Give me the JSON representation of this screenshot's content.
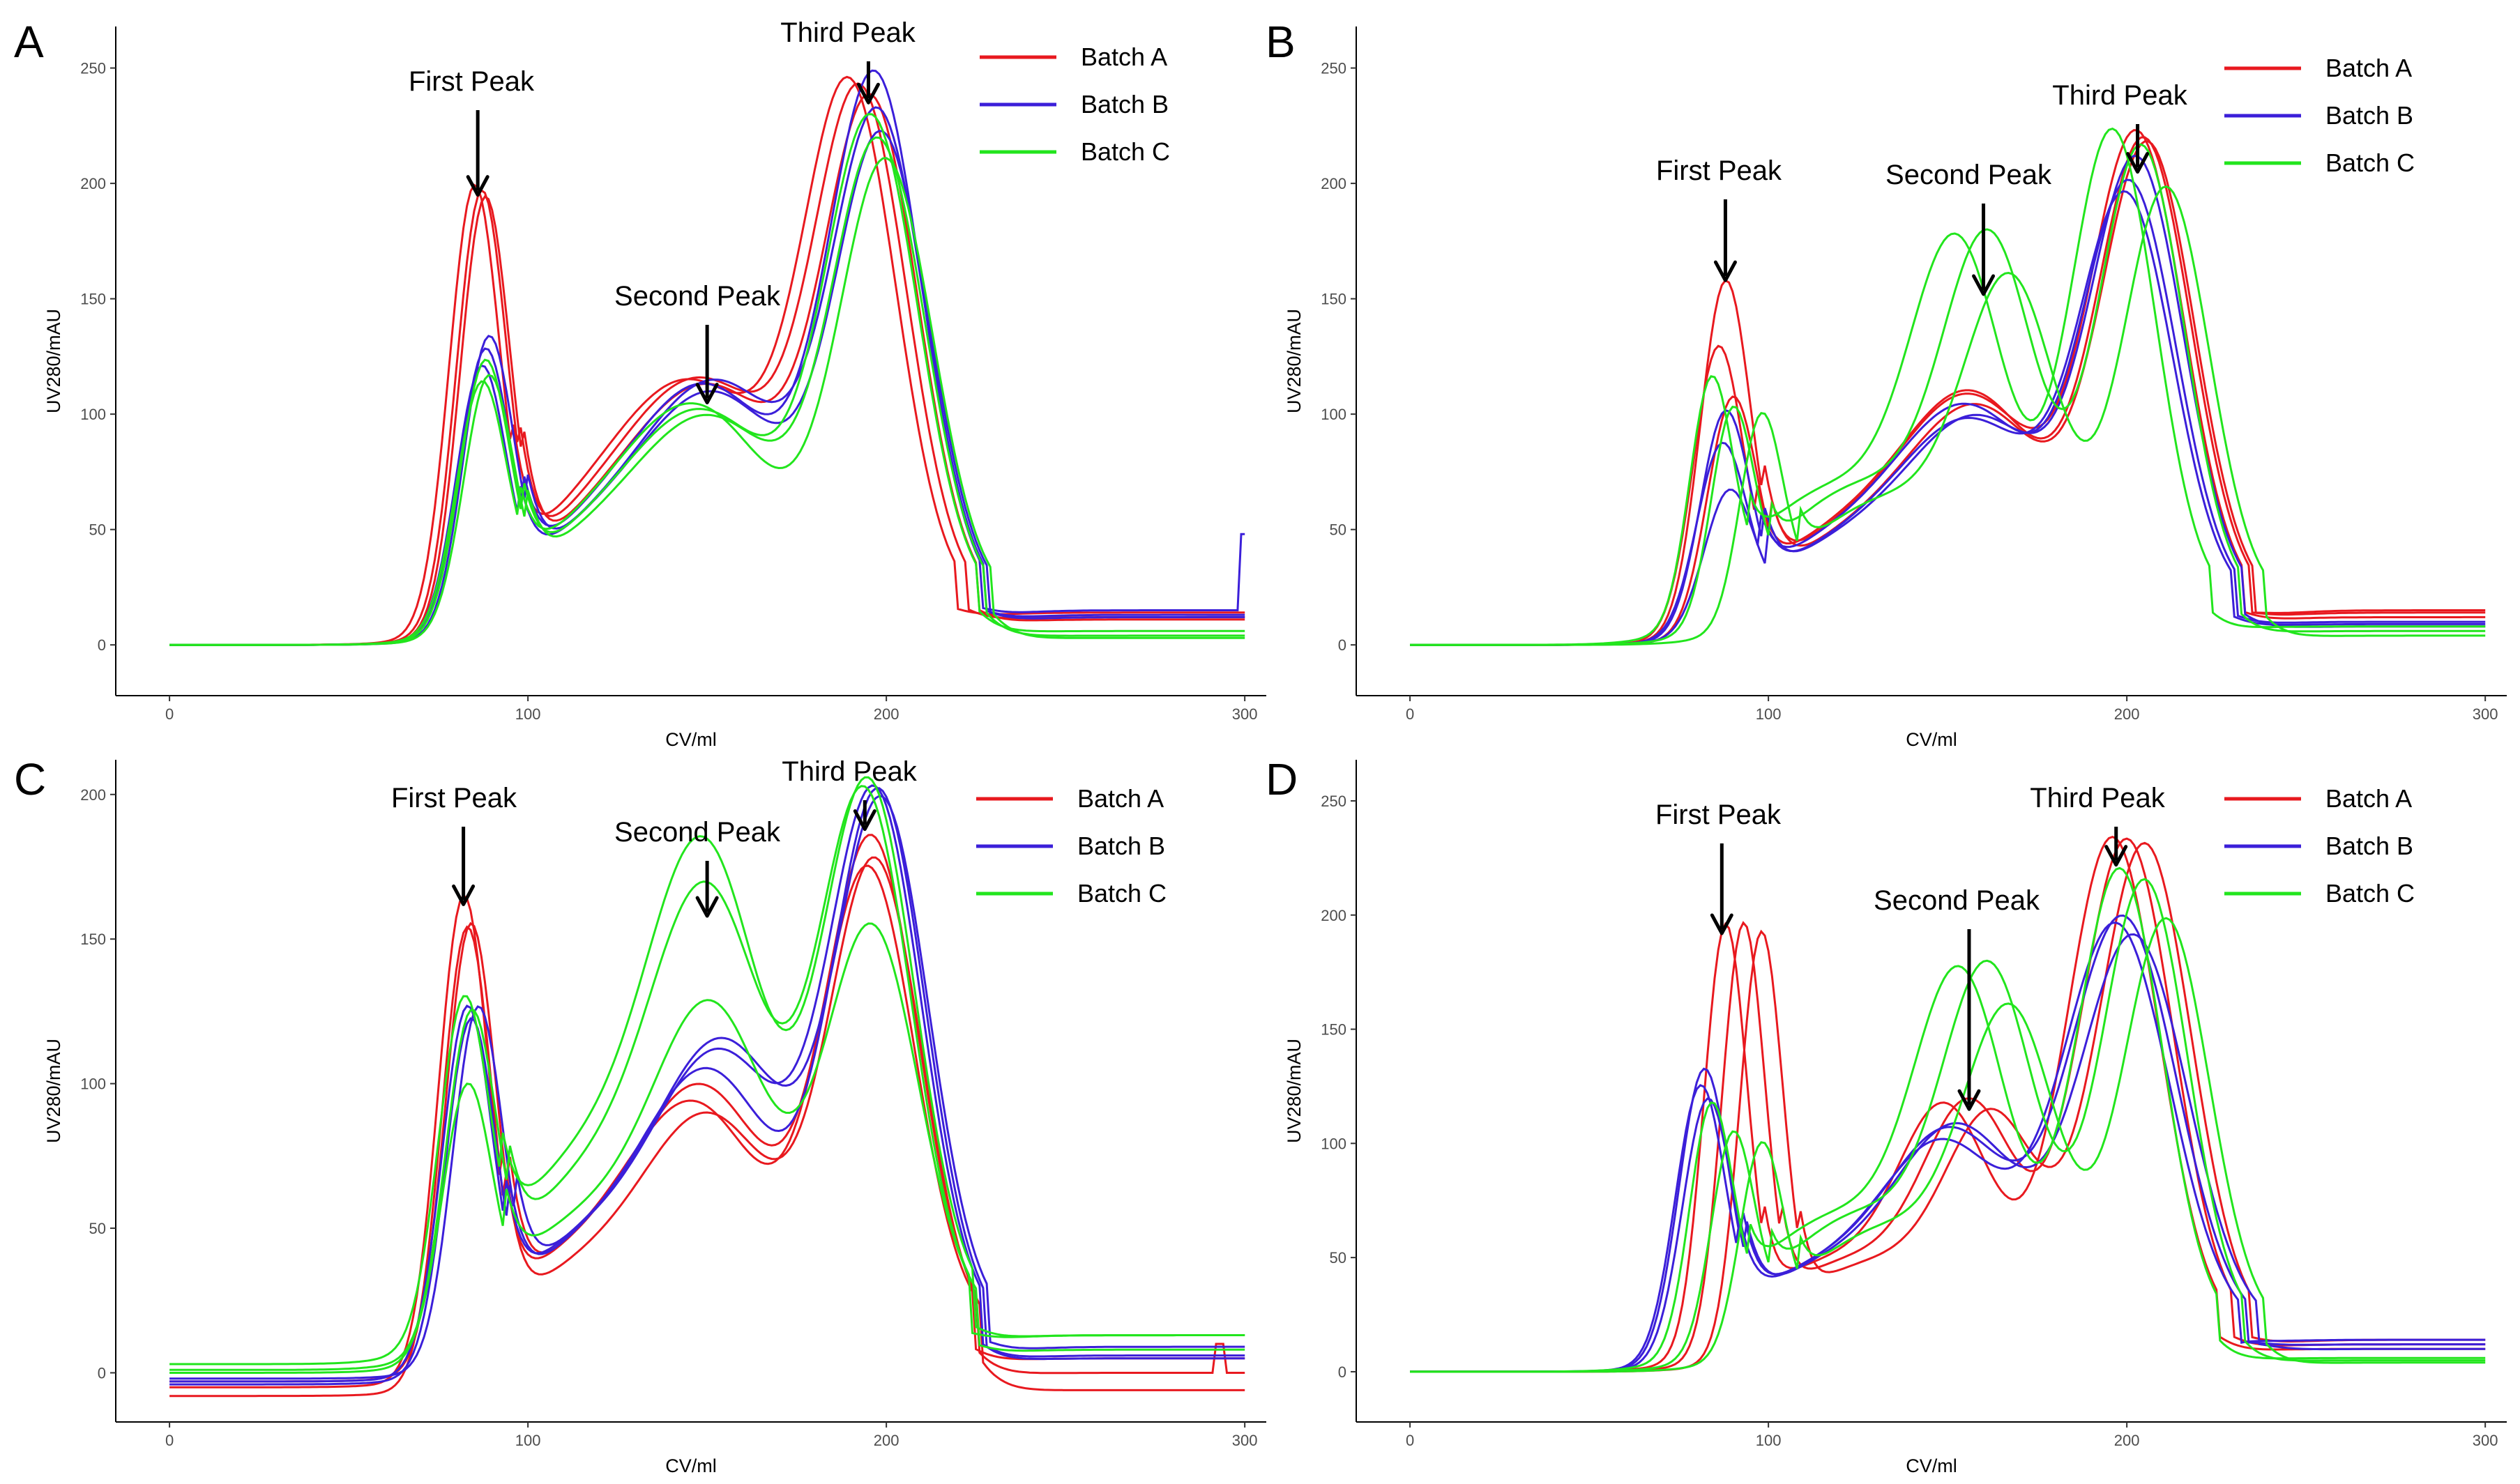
{
  "figure": {
    "xlabel": "CV/ml",
    "ylabel": "UV280/mAU"
  },
  "colors": {
    "Batch A": "#e8191f",
    "Batch B": "#3b1fd9",
    "Batch C": "#22e51d"
  },
  "chart_data": [
    {
      "panel": "A",
      "type": "line",
      "xlabel": "CV/ml",
      "ylabel": "UV280/mAU",
      "xlim": [
        -15,
        306
      ],
      "ylim": [
        -22,
        268
      ],
      "xticks": [
        0,
        100,
        200,
        300
      ],
      "yticks": [
        0,
        50,
        100,
        150,
        200,
        250
      ],
      "legend": [
        "Batch A",
        "Batch B",
        "Batch C"
      ],
      "annotations": [
        {
          "label": "First Peak",
          "x": 86,
          "y": 195
        },
        {
          "label": "Second Peak",
          "x": 150,
          "y": 105
        },
        {
          "label": "Third Peak",
          "x": 195,
          "y": 235
        }
      ],
      "series": [
        {
          "name": "Batch A",
          "baseline": 0,
          "tail": 14,
          "peaks": [
            [
              85,
              188,
              7
            ],
            [
              148,
              85,
              21
            ],
            [
              190,
              216,
              13
            ]
          ],
          "spike": null
        },
        {
          "name": "Batch A",
          "baseline": 0,
          "tail": 12,
          "peaks": [
            [
              87,
              186,
              7
            ],
            [
              151,
              86,
              21
            ],
            [
              193,
              213,
              13
            ]
          ],
          "spike": null
        },
        {
          "name": "Batch A",
          "baseline": 0,
          "tail": 11,
          "peaks": [
            [
              88,
              184,
              7
            ],
            [
              153,
              84,
              21
            ],
            [
              196,
              210,
              13
            ]
          ],
          "spike": null
        },
        {
          "name": "Batch B",
          "baseline": 0,
          "tail": 15,
          "peaks": [
            [
              88,
              118,
              7
            ],
            [
              152,
              84,
              20
            ],
            [
              197,
              224,
              13
            ]
          ],
          "spike": [
            300,
            48
          ]
        },
        {
          "name": "Batch B",
          "baseline": 0,
          "tail": 13,
          "peaks": [
            [
              89,
              124,
              7
            ],
            [
              155,
              86,
              20
            ],
            [
              198,
              206,
              13
            ]
          ],
          "spike": null
        },
        {
          "name": "Batch B",
          "baseline": 0,
          "tail": 12,
          "peaks": [
            [
              87,
              112,
              7
            ],
            [
              154,
              82,
              20
            ],
            [
              199,
              198,
              13
            ]
          ],
          "spike": null
        },
        {
          "name": "Batch C",
          "baseline": 0,
          "tail": 6,
          "peaks": [
            [
              88,
              114,
              7
            ],
            [
              151,
              74,
              20
            ],
            [
              196,
              206,
              13
            ]
          ],
          "spike": null
        },
        {
          "name": "Batch C",
          "baseline": 0,
          "tail": 4,
          "peaks": [
            [
              89,
              108,
              7
            ],
            [
              153,
              72,
              20
            ],
            [
              198,
              196,
              13
            ]
          ],
          "spike": null
        },
        {
          "name": "Batch C",
          "baseline": 0,
          "tail": 3,
          "peaks": [
            [
              87,
              104,
              7
            ],
            [
              149,
              76,
              20
            ],
            [
              200,
              190,
              13
            ]
          ],
          "spike": null
        }
      ]
    },
    {
      "panel": "B",
      "type": "line",
      "xlabel": "CV/ml",
      "ylabel": "UV280/mAU",
      "xlim": [
        -15,
        306
      ],
      "ylim": [
        -22,
        268
      ],
      "xticks": [
        0,
        100,
        200,
        300
      ],
      "yticks": [
        0,
        50,
        100,
        150,
        200,
        250
      ],
      "legend": [
        "Batch A",
        "Batch B",
        "Batch C"
      ],
      "annotations": [
        {
          "label": "First Peak",
          "x": 88,
          "y": 158
        },
        {
          "label": "Second Peak",
          "x": 160,
          "y": 152
        },
        {
          "label": "Third Peak",
          "x": 203,
          "y": 205
        }
      ],
      "series": [
        {
          "name": "Batch A",
          "baseline": 0,
          "tail": 12,
          "peaks": [
            [
              88,
              150,
              7
            ],
            [
              158,
              82,
              19
            ],
            [
              203,
              200,
              13
            ]
          ],
          "spike": null
        },
        {
          "name": "Batch A",
          "baseline": 0,
          "tail": 14,
          "peaks": [
            [
              86,
              122,
              7
            ],
            [
              158,
              84,
              19
            ],
            [
              205,
              198,
              13
            ]
          ],
          "spike": null
        },
        {
          "name": "Batch A",
          "baseline": 0,
          "tail": 15,
          "peaks": [
            [
              90,
              100,
              7
            ],
            [
              160,
              78,
              19
            ],
            [
              206,
              196,
              13
            ]
          ],
          "spike": null
        },
        {
          "name": "Batch B",
          "baseline": 0,
          "tail": 10,
          "peaks": [
            [
              87,
              80,
              7
            ],
            [
              157,
              78,
              19
            ],
            [
              201,
              178,
              13
            ]
          ],
          "spike": null
        },
        {
          "name": "Batch B",
          "baseline": 0,
          "tail": 9,
          "peaks": [
            [
              89,
              60,
              7
            ],
            [
              158,
              72,
              19
            ],
            [
              200,
              172,
              13
            ]
          ],
          "spike": null
        },
        {
          "name": "Batch B",
          "baseline": 0,
          "tail": 8,
          "peaks": [
            [
              88,
              95,
              7
            ],
            [
              160,
              74,
              19
            ],
            [
              203,
              188,
              13
            ]
          ],
          "spike": null
        },
        {
          "name": "Batch C",
          "baseline": 0,
          "tail": 8,
          "peaks": [
            [
              84,
              102,
              6
            ],
            [
              153,
              145,
              13
            ],
            [
              196,
              205,
              12
            ]
          ],
          "spike": null
        },
        {
          "name": "Batch C",
          "baseline": 0,
          "tail": 6,
          "peaks": [
            [
              90,
              90,
              6
            ],
            [
              162,
              148,
              13
            ],
            [
              204,
              198,
              12
            ]
          ],
          "spike": null
        },
        {
          "name": "Batch C",
          "baseline": 0,
          "tail": 4,
          "peaks": [
            [
              98,
              88,
              6
            ],
            [
              168,
              130,
              13
            ],
            [
              211,
              180,
              12
            ]
          ],
          "spike": null
        }
      ]
    },
    {
      "panel": "C",
      "type": "line",
      "xlabel": "CV/ml",
      "ylabel": "UV280/mAU",
      "xlim": [
        -15,
        306
      ],
      "ylim": [
        -17,
        212
      ],
      "xticks": [
        0,
        100,
        200,
        300
      ],
      "yticks": [
        0,
        50,
        100,
        150,
        200
      ],
      "legend": [
        "Batch A",
        "Batch B",
        "Batch C"
      ],
      "annotations": [
        {
          "label": "First Peak",
          "x": 82,
          "y": 162
        },
        {
          "label": "Second Peak",
          "x": 150,
          "y": 158
        },
        {
          "label": "Third Peak",
          "x": 194,
          "y": 188
        }
      ],
      "series": [
        {
          "name": "Batch A",
          "baseline": -5,
          "tail": 5,
          "peaks": [
            [
              82,
              162,
              7
            ],
            [
              150,
              78,
              18
            ],
            [
              196,
              170,
              13
            ]
          ],
          "spike": [
            293,
            15
          ]
        },
        {
          "name": "Batch A",
          "baseline": -8,
          "tail": 2,
          "peaks": [
            [
              83,
              155,
              7
            ],
            [
              152,
              72,
              18
            ],
            [
              197,
              165,
              13
            ]
          ],
          "spike": null
        },
        {
          "name": "Batch A",
          "baseline": -3,
          "tail": 8,
          "peaks": [
            [
              84,
              150,
              7
            ],
            [
              148,
              70,
              18
            ],
            [
              195,
              158,
              13
            ]
          ],
          "spike": null
        },
        {
          "name": "Batch B",
          "baseline": -3,
          "tail": 8,
          "peaks": [
            [
              83,
              122,
              7
            ],
            [
              155,
              88,
              18
            ],
            [
              197,
              182,
              13
            ]
          ],
          "spike": null
        },
        {
          "name": "Batch B",
          "baseline": -4,
          "tail": 10,
          "peaks": [
            [
              84,
              118,
              7
            ],
            [
              152,
              82,
              18
            ],
            [
              198,
              185,
              13
            ]
          ],
          "spike": null
        },
        {
          "name": "Batch B",
          "baseline": -2,
          "tail": 11,
          "peaks": [
            [
              86,
              120,
              7
            ],
            [
              156,
              90,
              18
            ],
            [
              199,
              178,
              13
            ]
          ],
          "spike": null
        },
        {
          "name": "Batch C",
          "baseline": 3,
          "tail": 10,
          "peaks": [
            [
              82,
              112,
              7
            ],
            [
              150,
              148,
              16
            ],
            [
              195,
              182,
              13
            ]
          ],
          "spike": null
        },
        {
          "name": "Batch C",
          "baseline": 0,
          "tail": 8,
          "peaks": [
            [
              83,
              90,
              7
            ],
            [
              152,
              100,
              16
            ],
            [
              196,
              135,
              13
            ]
          ],
          "spike": null
        },
        {
          "name": "Batch C",
          "baseline": 1,
          "tail": 12,
          "peaks": [
            [
              84,
              110,
              7
            ],
            [
              151,
              135,
              16
            ],
            [
              194,
              180,
              13
            ]
          ],
          "spike": null
        }
      ]
    },
    {
      "panel": "D",
      "type": "line",
      "xlabel": "CV/ml",
      "ylabel": "UV280/mAU",
      "xlim": [
        -15,
        306
      ],
      "ylim": [
        -22,
        268
      ],
      "xticks": [
        0,
        100,
        200,
        300
      ],
      "yticks": [
        0,
        50,
        100,
        150,
        200,
        250
      ],
      "legend": [
        "Batch A",
        "Batch B",
        "Batch C"
      ],
      "annotations": [
        {
          "label": "First Peak",
          "x": 87,
          "y": 192
        },
        {
          "label": "Second Peak",
          "x": 156,
          "y": 115
        },
        {
          "label": "Third Peak",
          "x": 197,
          "y": 222
        }
      ],
      "series": [
        {
          "name": "Batch A",
          "baseline": 0,
          "tail": 10,
          "peaks": [
            [
              88,
              185,
              6
            ],
            [
              150,
              88,
              13
            ],
            [
              196,
              216,
              13
            ]
          ],
          "spike": null
        },
        {
          "name": "Batch A",
          "baseline": 0,
          "tail": 12,
          "peaks": [
            [
              93,
              186,
              6
            ],
            [
              157,
              90,
              13
            ],
            [
              200,
              215,
              13
            ]
          ],
          "spike": null
        },
        {
          "name": "Batch A",
          "baseline": 0,
          "tail": 14,
          "peaks": [
            [
              98,
              183,
              6
            ],
            [
              163,
              86,
              13
            ],
            [
              205,
              213,
              13
            ]
          ],
          "spike": null
        },
        {
          "name": "Batch B",
          "baseline": 0,
          "tail": 12,
          "peaks": [
            [
              82,
              125,
              7
            ],
            [
              152,
              80,
              17
            ],
            [
              199,
              180,
              15
            ]
          ],
          "spike": null
        },
        {
          "name": "Batch B",
          "baseline": 0,
          "tail": 14,
          "peaks": [
            [
              81,
              118,
              7
            ],
            [
              150,
              75,
              17
            ],
            [
              197,
              177,
              15
            ]
          ],
          "spike": null
        },
        {
          "name": "Batch B",
          "baseline": 0,
          "tail": 10,
          "peaks": [
            [
              83,
              112,
              7
            ],
            [
              154,
              82,
              17
            ],
            [
              202,
              172,
              15
            ]
          ],
          "spike": null
        },
        {
          "name": "Batch C",
          "baseline": 0,
          "tail": 6,
          "peaks": [
            [
              84,
              104,
              6
            ],
            [
              154,
              145,
              13
            ],
            [
              198,
              202,
              12
            ]
          ],
          "spike": null
        },
        {
          "name": "Batch C",
          "baseline": 0,
          "tail": 5,
          "peaks": [
            [
              90,
              92,
              6
            ],
            [
              162,
              148,
              13
            ],
            [
              205,
              197,
              12
            ]
          ],
          "spike": null
        },
        {
          "name": "Batch C",
          "baseline": 0,
          "tail": 4,
          "peaks": [
            [
              98,
              88,
              6
            ],
            [
              168,
              130,
              13
            ],
            [
              211,
              180,
              12
            ]
          ],
          "spike": null
        }
      ]
    }
  ]
}
